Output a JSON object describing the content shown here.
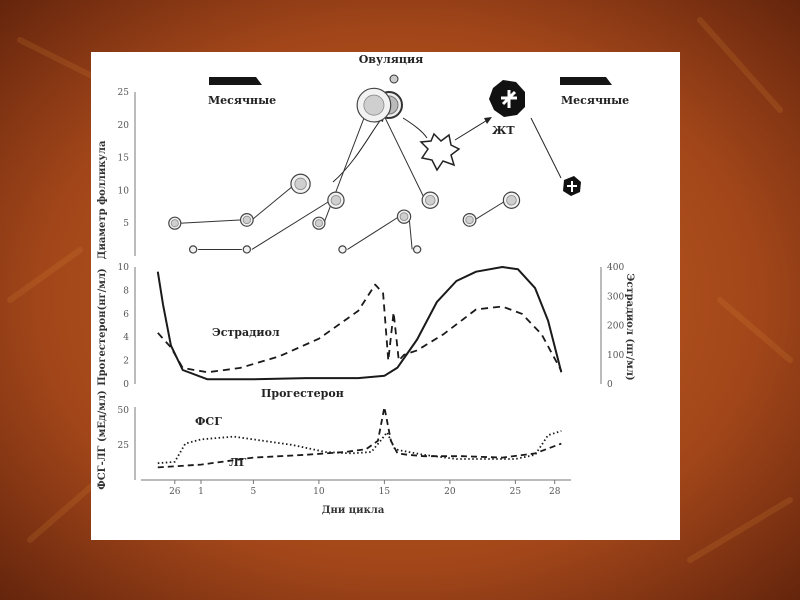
{
  "colors": {
    "background_dark": "#5a1f0a",
    "background_light": "#c8651f",
    "card": "#ffffff",
    "line": "#1a1a1a",
    "tick": "#555555"
  },
  "chart_data": [
    {
      "type": "diagram",
      "panel": "follicle",
      "ylabel": "Диаметр фолликула",
      "yticks": [
        5,
        10,
        15,
        20,
        25
      ],
      "ylim": [
        0,
        25
      ],
      "menses_label_left": "Месячные",
      "menses_label_right": "Месячные",
      "ovulation_label": "Овуляция",
      "corpus_luteum_label": "ЖТ",
      "follicles": [
        {
          "day": -2.0,
          "size": 5
        },
        {
          "day": -0.6,
          "size": 1
        },
        {
          "day": 3.5,
          "size": 5.5
        },
        {
          "day": 3.5,
          "size": 1
        },
        {
          "day": 7.6,
          "size": 11
        },
        {
          "day": 9.0,
          "size": 5
        },
        {
          "day": 10.3,
          "size": 8.5
        },
        {
          "day": 10.8,
          "size": 1
        },
        {
          "day": 13.2,
          "size": 23
        },
        {
          "day": 15.5,
          "size": 6
        },
        {
          "day": 17.5,
          "size": 8.5
        },
        {
          "day": 16.5,
          "size": 1
        },
        {
          "day": 20.5,
          "size": 5.5
        },
        {
          "day": 23.7,
          "size": 8.5
        }
      ]
    },
    {
      "type": "line",
      "panel": "hormones",
      "ylabel": "Прогестерон(нг/мл)",
      "ylabel_right": "Эстрадиол (пг/мл)",
      "yticks": [
        0,
        2,
        4,
        6,
        8,
        10
      ],
      "yticks_right": [
        0,
        100,
        200,
        300,
        400
      ],
      "ylim": [
        0,
        10
      ],
      "ylim_right": [
        0,
        400
      ],
      "series": [
        {
          "name": "Прогестерон",
          "style": "solid",
          "axis": "left",
          "x": [
            -3.3,
            -2.9,
            -2.3,
            -1.4,
            0.5,
            4,
            8,
            12,
            14.0,
            15.0,
            16.5,
            18,
            19.5,
            21,
            23,
            24.2,
            25.5,
            26.5,
            27.5
          ],
          "y": [
            9.6,
            6.8,
            3.3,
            1.2,
            0.4,
            0.4,
            0.5,
            0.5,
            0.7,
            1.4,
            3.8,
            7.0,
            8.8,
            9.6,
            10.0,
            9.8,
            8.2,
            5.4,
            1.0
          ]
        },
        {
          "name": "Эстрадиол",
          "style": "dashed",
          "axis": "right",
          "x": [
            -3.3,
            -2.3,
            -1.4,
            0.5,
            3,
            6,
            9,
            12,
            13.3,
            13.9,
            14.3,
            14.7,
            15.1,
            15.5,
            16.5,
            18.5,
            21,
            23,
            24.5,
            26,
            27.5
          ],
          "y": [
            175,
            125,
            55,
            40,
            55,
            95,
            155,
            250,
            340,
            310,
            80,
            245,
            80,
            100,
            115,
            170,
            255,
            265,
            240,
            170,
            45
          ]
        }
      ],
      "annotations": [
        "Эстрадиол",
        "Прогестерон"
      ]
    },
    {
      "type": "line",
      "panel": "gonadotropins",
      "ylabel": "ФСГ-ЛГ (мЕд/мл)",
      "xlabel": "Дни цикла",
      "xticks": [
        "26",
        "1",
        "5",
        "10",
        "15",
        "20",
        "25",
        "28"
      ],
      "xtick_days": [
        -2,
        0,
        4,
        9,
        14,
        19,
        24,
        27
      ],
      "yticks": [
        25,
        50
      ],
      "ylim": [
        0,
        50
      ],
      "series": [
        {
          "name": "ФСГ",
          "style": "dotted",
          "x": [
            -3.3,
            -2,
            -1.2,
            0,
            2.5,
            4,
            7,
            9.5,
            11.5,
            13.0,
            13.7,
            14.2,
            14.8,
            15.3,
            17,
            19.5,
            22,
            24,
            25.5,
            26.5,
            27.5
          ],
          "y": [
            12,
            13,
            26,
            29,
            31,
            29,
            25,
            20,
            19,
            20,
            28,
            34,
            22,
            21,
            18,
            15,
            15,
            15,
            18,
            32,
            35
          ]
        },
        {
          "name": "ЛГ",
          "style": "dashed",
          "x": [
            -3.3,
            0,
            4,
            8,
            11,
            12.6,
            13.5,
            14.0,
            14.5,
            15.0,
            15.8,
            17,
            20,
            23,
            25.5,
            27.5
          ],
          "y": [
            9,
            11,
            16,
            18,
            20,
            22,
            28,
            52,
            28,
            19,
            18,
            17,
            17,
            16,
            19,
            26
          ]
        }
      ]
    }
  ]
}
